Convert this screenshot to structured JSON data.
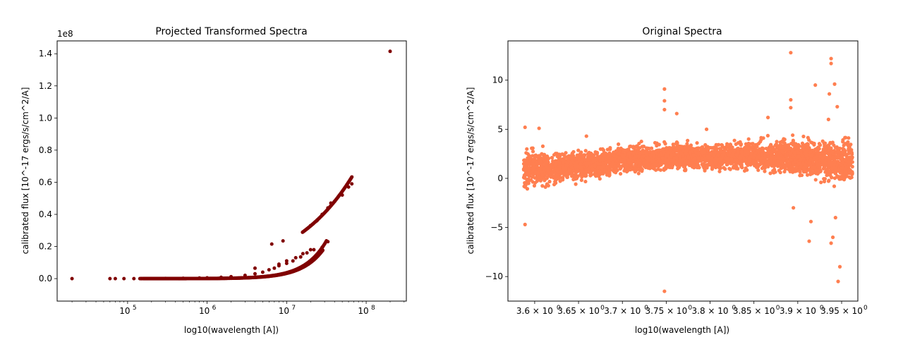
{
  "chart_data": [
    {
      "type": "scatter",
      "title": "Projected Transformed Spectra",
      "xlabel": "log10(wavelength [A])",
      "ylabel": "calibrated flux [10^-17 ergs/s/cm^2/A]",
      "xscale": "log",
      "xlim": [
        13000,
        320000000
      ],
      "ylim": [
        -14000000,
        148000000
      ],
      "y_scale_note": "1e8",
      "x_ticks": [
        {
          "value": 100000,
          "base": "10",
          "exp": "5"
        },
        {
          "value": 1000000,
          "base": "10",
          "exp": "6"
        },
        {
          "value": 10000000,
          "base": "10",
          "exp": "7"
        },
        {
          "value": 100000000,
          "base": "10",
          "exp": "8"
        }
      ],
      "y_ticks": [
        {
          "value": 0,
          "label": "0.0"
        },
        {
          "value": 20000000,
          "label": "0.2"
        },
        {
          "value": 40000000,
          "label": "0.4"
        },
        {
          "value": 60000000,
          "label": "0.6"
        },
        {
          "value": 80000000,
          "label": "0.8"
        },
        {
          "value": 100000000,
          "label": "1.0"
        },
        {
          "value": 120000000,
          "label": "1.2"
        },
        {
          "value": 140000000,
          "label": "1.4"
        }
      ],
      "marker_color": "#800000",
      "points": [
        [
          20000,
          0
        ],
        [
          60000,
          0
        ],
        [
          70000,
          0
        ],
        [
          90000,
          0
        ],
        [
          120000,
          0
        ],
        [
          150000,
          0
        ],
        [
          200000,
          50000
        ],
        [
          300000,
          100000
        ],
        [
          500000,
          200000
        ],
        [
          800000,
          400000
        ],
        [
          1000000,
          500000
        ],
        [
          1500000,
          800000
        ],
        [
          2000000,
          1200000
        ],
        [
          3000000,
          2000000
        ],
        [
          4000000,
          3000000
        ],
        [
          5000000,
          4000000
        ],
        [
          6000000,
          5500000
        ],
        [
          7000000,
          6500000
        ],
        [
          8000000,
          8000000
        ],
        [
          10000000,
          9500000
        ],
        [
          12000000,
          11000000
        ],
        [
          15000000,
          13500000
        ],
        [
          18000000,
          16000000
        ],
        [
          22000000,
          18000000
        ],
        [
          28000000,
          19500000
        ],
        [
          8000000,
          9000000
        ],
        [
          10000000,
          11000000
        ],
        [
          13000000,
          13000000
        ],
        [
          16000000,
          15500000
        ],
        [
          20000000,
          18000000
        ],
        [
          17000000,
          30000000
        ],
        [
          20000000,
          33000000
        ],
        [
          24000000,
          36000000
        ],
        [
          28000000,
          40000000
        ],
        [
          33000000,
          44000000
        ],
        [
          40000000,
          48000000
        ],
        [
          50000000,
          52000000
        ],
        [
          60000000,
          57000000
        ],
        [
          66000000,
          59000000
        ],
        [
          6500000,
          21500000
        ],
        [
          9000000,
          23500000
        ],
        [
          4000000,
          6500000
        ],
        [
          33000000,
          23000000
        ],
        [
          36000000,
          47000000
        ],
        [
          200000000,
          141500000
        ]
      ]
    },
    {
      "type": "scatter",
      "title": "Original Spectra",
      "xlabel": "log10(wavelength [A])",
      "ylabel": "calibrated flux [10^-17 ergs/s/cm^2/A]",
      "xlim": [
        3.5695,
        3.9685
      ],
      "ylim": [
        -12.5,
        14
      ],
      "x_ticks": [
        {
          "value": 3.6,
          "label": "3.6 × 10",
          "exp": "0"
        },
        {
          "value": 3.65,
          "label": "3.65 × 10",
          "exp": "0"
        },
        {
          "value": 3.7,
          "label": "3.7 × 10",
          "exp": "0"
        },
        {
          "value": 3.75,
          "label": "3.75 × 10",
          "exp": "0"
        },
        {
          "value": 3.8,
          "label": "3.8 × 10",
          "exp": "0"
        },
        {
          "value": 3.85,
          "label": "3.85 × 10",
          "exp": "0"
        },
        {
          "value": 3.9,
          "label": "3.9 × 10",
          "exp": "0"
        },
        {
          "value": 3.95,
          "label": "3.95 × 10",
          "exp": "0"
        }
      ],
      "y_ticks": [
        {
          "value": -10,
          "label": "−10"
        },
        {
          "value": -5,
          "label": "−5"
        },
        {
          "value": 0,
          "label": "0"
        },
        {
          "value": 5,
          "label": "5"
        },
        {
          "value": 10,
          "label": "10"
        }
      ],
      "marker_color": "#ff7f50",
      "band": [
        {
          "x": 3.5875,
          "center": 1.0,
          "spread": 1.6
        },
        {
          "x": 3.62,
          "center": 1.0,
          "spread": 1.3
        },
        {
          "x": 3.66,
          "center": 1.3,
          "spread": 1.1
        },
        {
          "x": 3.7,
          "center": 1.9,
          "spread": 1.0
        },
        {
          "x": 3.75,
          "center": 2.2,
          "spread": 1.1
        },
        {
          "x": 3.8,
          "center": 2.2,
          "spread": 1.0
        },
        {
          "x": 3.85,
          "center": 2.3,
          "spread": 1.1
        },
        {
          "x": 3.9,
          "center": 2.2,
          "spread": 1.5
        },
        {
          "x": 3.9625,
          "center": 1.6,
          "spread": 2.0
        }
      ],
      "outliers": [
        [
          3.589,
          -4.7
        ],
        [
          3.589,
          5.2
        ],
        [
          3.605,
          5.1
        ],
        [
          3.659,
          4.3
        ],
        [
          3.748,
          9.1
        ],
        [
          3.748,
          7.9
        ],
        [
          3.748,
          7.0
        ],
        [
          3.748,
          -11.5
        ],
        [
          3.762,
          6.6
        ],
        [
          3.796,
          5.0
        ],
        [
          3.866,
          6.2
        ],
        [
          3.892,
          12.8
        ],
        [
          3.892,
          8.0
        ],
        [
          3.892,
          7.2
        ],
        [
          3.895,
          -3.0
        ],
        [
          3.913,
          -6.4
        ],
        [
          3.915,
          -4.4
        ],
        [
          3.92,
          9.5
        ],
        [
          3.936,
          8.6
        ],
        [
          3.938,
          12.2
        ],
        [
          3.938,
          11.7
        ],
        [
          3.94,
          -6.0
        ],
        [
          3.938,
          -6.6
        ],
        [
          3.942,
          9.6
        ],
        [
          3.945,
          7.3
        ],
        [
          3.948,
          -9.0
        ],
        [
          3.946,
          -10.5
        ],
        [
          3.943,
          -4.0
        ],
        [
          3.935,
          6.0
        ]
      ]
    }
  ]
}
